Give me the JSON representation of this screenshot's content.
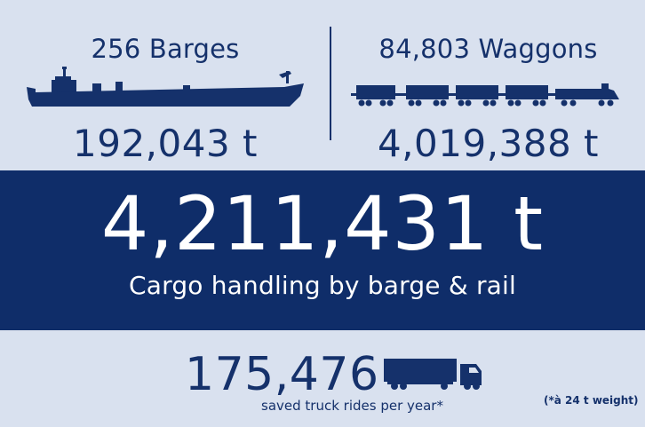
{
  "barges": {
    "heading": "256 Barges",
    "amount": "192,043 t",
    "icon": "barge-icon"
  },
  "waggons": {
    "heading": "84,803 Waggons",
    "amount": "4,019,388 t",
    "icon": "train-icon"
  },
  "total": {
    "amount": "4,211,431 t",
    "caption": "Cargo handling by barge & rail"
  },
  "trucks": {
    "value": "175,476",
    "caption": "saved truck rides per year*",
    "note": "(*à 24 t weight)",
    "icon": "truck-icon"
  },
  "colors": {
    "navy": "#0f2d69",
    "text": "#15316b",
    "background": "#d9e1ef",
    "band_text": "#ffffff"
  }
}
